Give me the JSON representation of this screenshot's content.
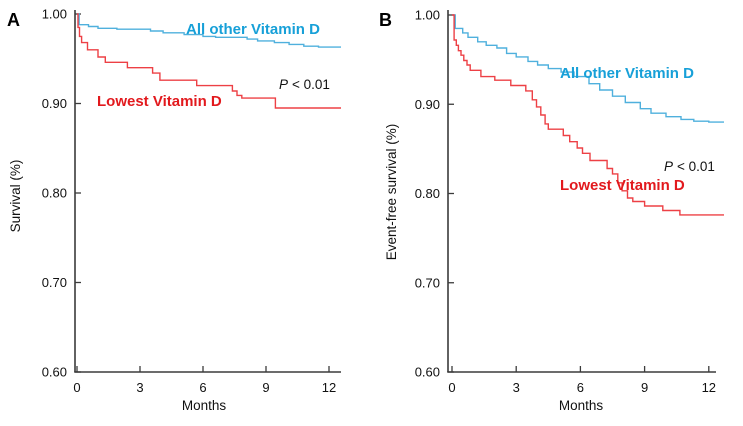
{
  "figure": {
    "background": "#FFFFFF",
    "axis_color": "#3B3B3B",
    "text_color": "#111111",
    "description": "Two-panel Kaplan-Meier survival figure"
  },
  "chart_data": [
    {
      "type": "line",
      "subtype": "kaplan-meier-step",
      "panel_label": "A",
      "xlabel": "Months",
      "ylabel": "Survival (%)",
      "xlim": [
        0,
        12.6
      ],
      "ylim": [
        0.6,
        1.0
      ],
      "xticks": [
        "0",
        "3",
        "6",
        "9",
        "12"
      ],
      "yticks": [
        "1.00",
        "0.90",
        "0.80",
        "0.70",
        "0.60"
      ],
      "grid": false,
      "legend": "inline annotations",
      "p_var": "P",
      "p_rest": "< 0.01",
      "series": [
        {
          "name": "All other Vitamin D",
          "color": "#4FB0DD",
          "label_color": "#17A0D8",
          "points": [
            [
              0,
              1.0
            ],
            [
              0.1,
              0.988
            ],
            [
              0.55,
              0.986
            ],
            [
              1.0,
              0.984
            ],
            [
              1.9,
              0.983
            ],
            [
              3.5,
              0.981
            ],
            [
              4.1,
              0.979
            ],
            [
              5.1,
              0.977
            ],
            [
              6.0,
              0.975
            ],
            [
              6.6,
              0.974
            ],
            [
              8.1,
              0.972
            ],
            [
              8.6,
              0.97
            ],
            [
              9.4,
              0.968
            ],
            [
              10.1,
              0.966
            ],
            [
              10.8,
              0.964
            ],
            [
              11.5,
              0.963
            ]
          ]
        },
        {
          "name": "Lowest Vitamin D",
          "color": "#ED4045",
          "label_color": "#E2191D",
          "points": [
            [
              0,
              1.0
            ],
            [
              0.05,
              0.985
            ],
            [
              0.12,
              0.975
            ],
            [
              0.22,
              0.968
            ],
            [
              0.5,
              0.96
            ],
            [
              1.0,
              0.952
            ],
            [
              1.35,
              0.946
            ],
            [
              2.4,
              0.94
            ],
            [
              3.6,
              0.934
            ],
            [
              3.95,
              0.926
            ],
            [
              5.7,
              0.92
            ],
            [
              7.4,
              0.914
            ],
            [
              7.62,
              0.909
            ],
            [
              7.85,
              0.906
            ],
            [
              9.45,
              0.895
            ]
          ]
        }
      ]
    },
    {
      "type": "line",
      "subtype": "kaplan-meier-step",
      "panel_label": "B",
      "xlabel": "Months",
      "ylabel": "Event-free survival (%)",
      "xlim": [
        0,
        12.6
      ],
      "ylim": [
        0.6,
        1.0
      ],
      "xticks": [
        "0",
        "3",
        "6",
        "9",
        "12"
      ],
      "yticks": [
        "1.00",
        "0.90",
        "0.80",
        "0.70",
        "0.60"
      ],
      "grid": false,
      "legend": "inline annotations",
      "p_var": "P",
      "p_rest": "< 0.01",
      "series": [
        {
          "name": "All other Vitamin D",
          "color": "#4FB0DD",
          "label_color": "#17A0D8",
          "points": [
            [
              0,
              1.0
            ],
            [
              0.15,
              0.985
            ],
            [
              0.5,
              0.98
            ],
            [
              0.75,
              0.975
            ],
            [
              1.2,
              0.97
            ],
            [
              1.6,
              0.966
            ],
            [
              2.1,
              0.963
            ],
            [
              2.55,
              0.957
            ],
            [
              3.0,
              0.953
            ],
            [
              3.55,
              0.948
            ],
            [
              4.0,
              0.944
            ],
            [
              4.5,
              0.94
            ],
            [
              5.1,
              0.936
            ],
            [
              5.7,
              0.931
            ],
            [
              6.4,
              0.923
            ],
            [
              6.9,
              0.916
            ],
            [
              7.5,
              0.909
            ],
            [
              8.1,
              0.902
            ],
            [
              8.8,
              0.895
            ],
            [
              9.3,
              0.89
            ],
            [
              10.0,
              0.886
            ],
            [
              10.7,
              0.883
            ],
            [
              11.3,
              0.881
            ],
            [
              12.0,
              0.88
            ]
          ]
        },
        {
          "name": "Lowest Vitamin D",
          "color": "#ED4045",
          "label_color": "#E2191D",
          "points": [
            [
              0,
              1.0
            ],
            [
              0.1,
              0.972
            ],
            [
              0.2,
              0.966
            ],
            [
              0.3,
              0.96
            ],
            [
              0.42,
              0.955
            ],
            [
              0.55,
              0.949
            ],
            [
              0.7,
              0.944
            ],
            [
              0.85,
              0.938
            ],
            [
              1.35,
              0.931
            ],
            [
              2.0,
              0.927
            ],
            [
              2.75,
              0.921
            ],
            [
              3.45,
              0.915
            ],
            [
              3.75,
              0.905
            ],
            [
              3.95,
              0.897
            ],
            [
              4.15,
              0.888
            ],
            [
              4.35,
              0.878
            ],
            [
              4.5,
              0.872
            ],
            [
              5.2,
              0.865
            ],
            [
              5.5,
              0.858
            ],
            [
              5.85,
              0.851
            ],
            [
              6.1,
              0.845
            ],
            [
              6.45,
              0.837
            ],
            [
              7.25,
              0.828
            ],
            [
              7.5,
              0.822
            ],
            [
              7.75,
              0.812
            ],
            [
              7.95,
              0.803
            ],
            [
              8.2,
              0.795
            ],
            [
              8.45,
              0.791
            ],
            [
              9.0,
              0.786
            ],
            [
              9.85,
              0.781
            ],
            [
              10.65,
              0.776
            ]
          ]
        }
      ]
    }
  ]
}
